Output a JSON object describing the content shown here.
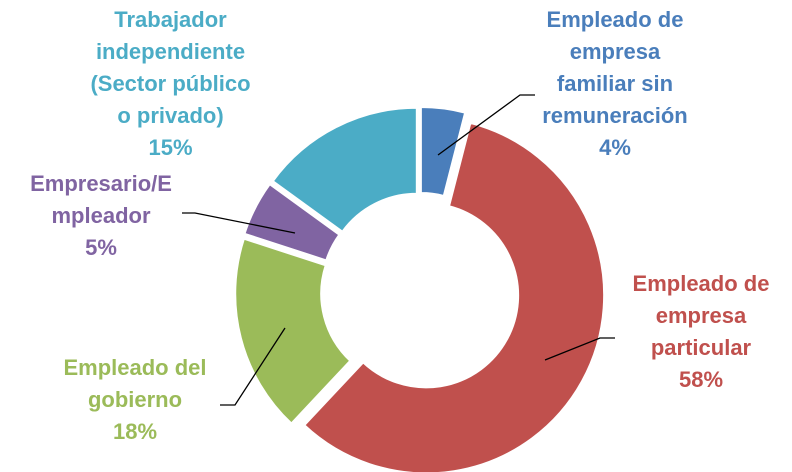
{
  "chart_data": {
    "type": "donut",
    "categories": [
      "Empleado de empresa familiar sin remuneración",
      "Empleado de empresa particular",
      "Empleado del gobierno",
      "Empresario/Empleador",
      "Trabajador independiente (Sector público o privado)"
    ],
    "values": [
      4,
      58,
      18,
      5,
      15
    ],
    "value_labels": [
      "4%",
      "58%",
      "18%",
      "5%",
      "15%"
    ],
    "colors": [
      "#4a7ebb",
      "#c0504d",
      "#9bbb59",
      "#8064a2",
      "#4bacc6"
    ]
  }
}
